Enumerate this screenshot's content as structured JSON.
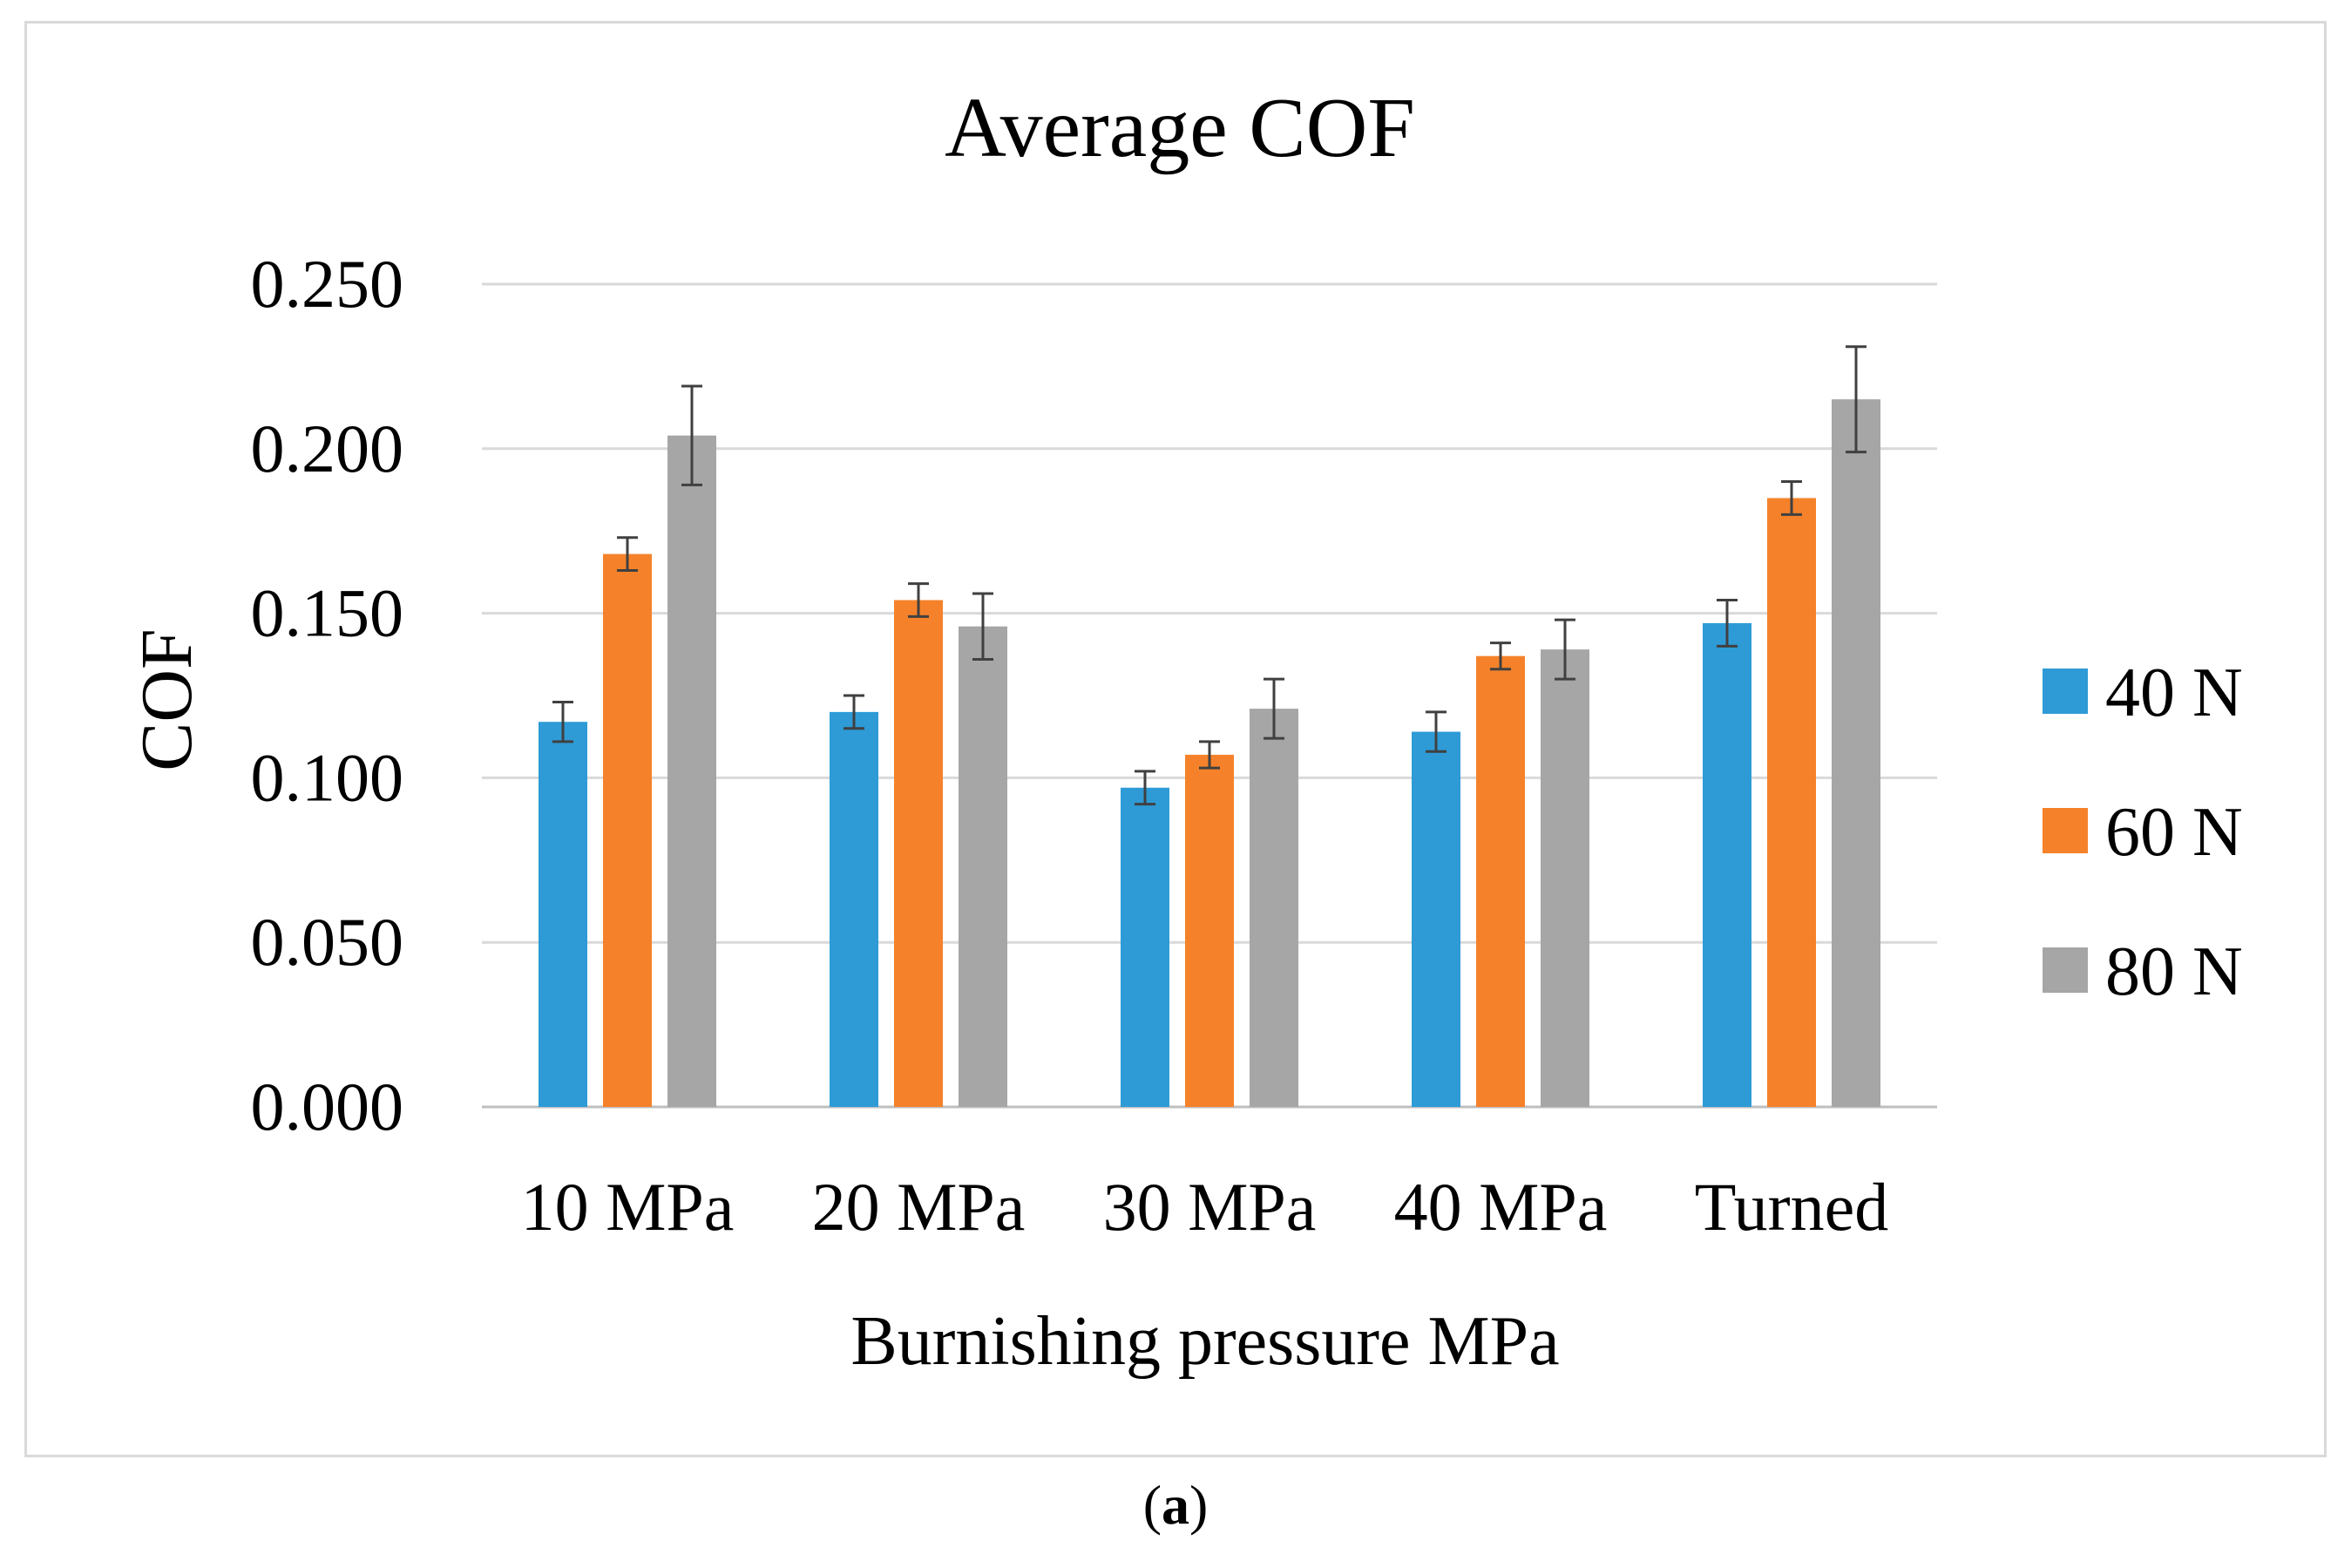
{
  "caption": {
    "open": "(",
    "label": "a",
    "close": ")"
  },
  "chart_data": {
    "type": "bar",
    "title": "Average COF",
    "xlabel": "Burnishing pressure MPa",
    "ylabel": "COF",
    "categories": [
      "10 MPa",
      "20 MPa",
      "30 MPa",
      "40 MPa",
      "Turned"
    ],
    "ylim": [
      0,
      0.25
    ],
    "yticks": [
      "0.000",
      "0.050",
      "0.100",
      "0.150",
      "0.200",
      "0.250"
    ],
    "ytick_values": [
      0,
      0.05,
      0.1,
      0.15,
      0.2,
      0.25
    ],
    "grid": true,
    "legend_position": "right",
    "series": [
      {
        "name": "40 N",
        "color": "#2E9BD6",
        "values": [
          0.117,
          0.12,
          0.097,
          0.114,
          0.147
        ],
        "errors": [
          0.006,
          0.005,
          0.005,
          0.006,
          0.007
        ]
      },
      {
        "name": "60 N",
        "color": "#F5822A",
        "values": [
          0.168,
          0.154,
          0.107,
          0.137,
          0.185
        ],
        "errors": [
          0.005,
          0.005,
          0.004,
          0.004,
          0.005
        ]
      },
      {
        "name": "80 N",
        "color": "#A6A6A6",
        "values": [
          0.204,
          0.146,
          0.121,
          0.139,
          0.215
        ],
        "errors": [
          0.015,
          0.01,
          0.009,
          0.009,
          0.016
        ]
      }
    ]
  }
}
